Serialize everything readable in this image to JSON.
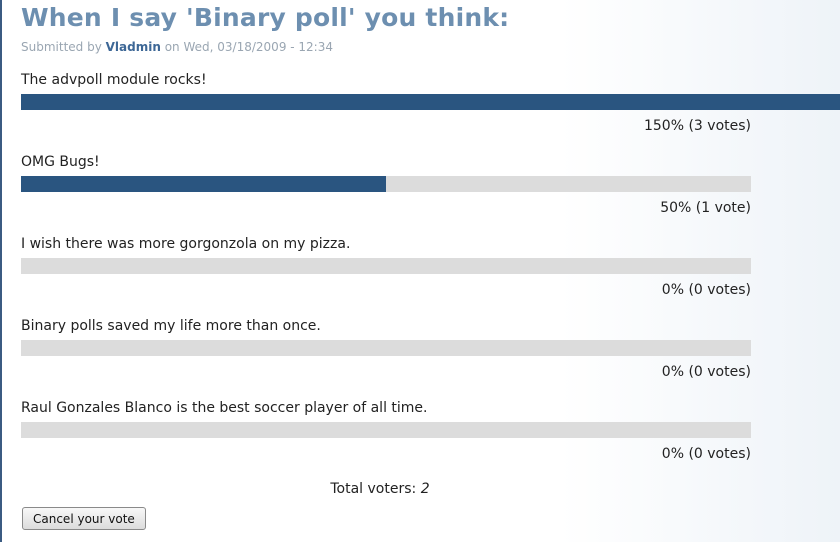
{
  "node": {
    "title": "When I say 'Binary poll' you think:",
    "submitted_label": "Submitted by",
    "author": "Vladmin",
    "on_label": "on",
    "date": "Wed, 03/18/2009 - 12:34"
  },
  "poll": {
    "choices": [
      {
        "label": "The advpoll module rocks!",
        "percent": 150,
        "result": "150% (3 votes)"
      },
      {
        "label": "OMG Bugs!",
        "percent": 50,
        "result": "50% (1 vote)"
      },
      {
        "label": "I wish there was more gorgonzola on my pizza.",
        "percent": 0,
        "result": "0% (0 votes)"
      },
      {
        "label": "Binary polls saved my life more than once.",
        "percent": 0,
        "result": "0% (0 votes)"
      },
      {
        "label": "Raul Gonzales Blanco is the best soccer player of all time.",
        "percent": 0,
        "result": "0% (0 votes)"
      }
    ],
    "total_label": "Total voters:",
    "total_value": "2",
    "cancel_label": "Cancel your vote"
  },
  "colors": {
    "bar_fill": "#2a5580",
    "bar_track": "#dcdcdc",
    "title": "#6d8fb0",
    "author_link": "#3d6796"
  }
}
